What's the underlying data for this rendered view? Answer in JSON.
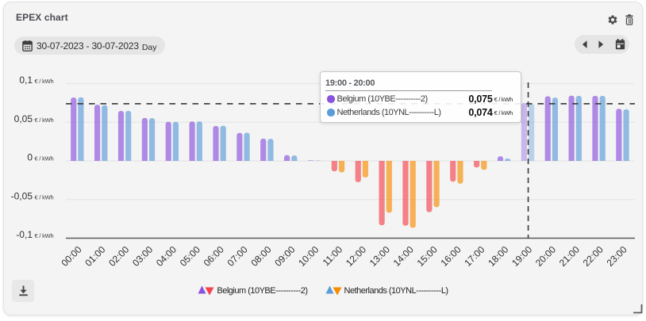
{
  "card": {
    "title": "EPEX chart"
  },
  "toolbar": {
    "date_range": "30-07-2023 - 30-07-2023",
    "granularity": "Day"
  },
  "tooltip": {
    "title": "19:00 - 20:00",
    "rows": [
      {
        "label": "Belgium (10YBE----------2)",
        "value": "0,075",
        "unit": "€ / kWh",
        "color": "#8a52dd"
      },
      {
        "label": "Netherlands (10YNL----------L)",
        "value": "0,074",
        "unit": "€ / kWh",
        "color": "#5b9bd8"
      }
    ]
  },
  "legend": [
    {
      "label": "Belgium (10YBE----------2)",
      "up_color": "#8a52dd",
      "down_color": "#f4434f"
    },
    {
      "label": "Netherlands (10YNL----------L)",
      "up_color": "#5b9bd8",
      "down_color": "#f88c00"
    }
  ],
  "chart_data": {
    "type": "bar",
    "title": "EPEX chart",
    "unit": "€ / kWh",
    "categories": [
      "00:00",
      "01:00",
      "02:00",
      "03:00",
      "04:00",
      "05:00",
      "06:00",
      "07:00",
      "08:00",
      "09:00",
      "10:00",
      "11:00",
      "12:00",
      "13:00",
      "14:00",
      "15:00",
      "16:00",
      "17:00",
      "18:00",
      "19:00",
      "20:00",
      "21:00",
      "22:00",
      "23:00"
    ],
    "series": [
      {
        "name": "Belgium (10YBE----------2)",
        "positive_color": "#8a52dd",
        "negative_color": "#f4434f",
        "values": [
          0.082,
          0.0727,
          0.0648,
          0.0556,
          0.0506,
          0.051,
          0.0452,
          0.0363,
          0.0288,
          0.0076,
          0.0006,
          -0.0135,
          -0.0275,
          -0.0833,
          -0.0839,
          -0.0664,
          -0.0269,
          -0.0086,
          0.006,
          0.075,
          0.0837,
          0.0845,
          0.0842,
          0.0676
        ]
      },
      {
        "name": "Netherlands (10YNL----------L)",
        "positive_color": "#5b9bd8",
        "negative_color": "#f88c00",
        "values": [
          0.0823,
          0.072,
          0.0648,
          0.0554,
          0.0507,
          0.0511,
          0.0455,
          0.0365,
          0.0286,
          0.007,
          0.0004,
          -0.015,
          -0.0215,
          -0.0672,
          -0.0867,
          -0.0599,
          -0.0294,
          -0.0116,
          0.0029,
          0.074,
          0.0819,
          0.0842,
          0.0842,
          0.0668
        ]
      }
    ],
    "bar_opacity": 0.65,
    "highlight_opacity": 0.38,
    "highlighted_category": "19:00",
    "current_price_line": 0.074,
    "ylim": [
      -0.105,
      0.105
    ],
    "yticks": [
      {
        "value": 0.1,
        "label": "0,1"
      },
      {
        "value": 0.05,
        "label": "0,05"
      },
      {
        "value": 0.0,
        "label": "0"
      },
      {
        "value": -0.05,
        "label": "-0,05"
      },
      {
        "value": -0.1,
        "label": "-0,1"
      }
    ],
    "ytick_unit": "€ / kWh",
    "grid": true,
    "legend_position": "bottom"
  },
  "colors": {
    "card_bg": "#f4f4f4",
    "grid_line": "#e8e8e8",
    "axis_line": "#5a5a5a",
    "dashed_line": "#444444",
    "tick_text": "#3c3c3c"
  }
}
